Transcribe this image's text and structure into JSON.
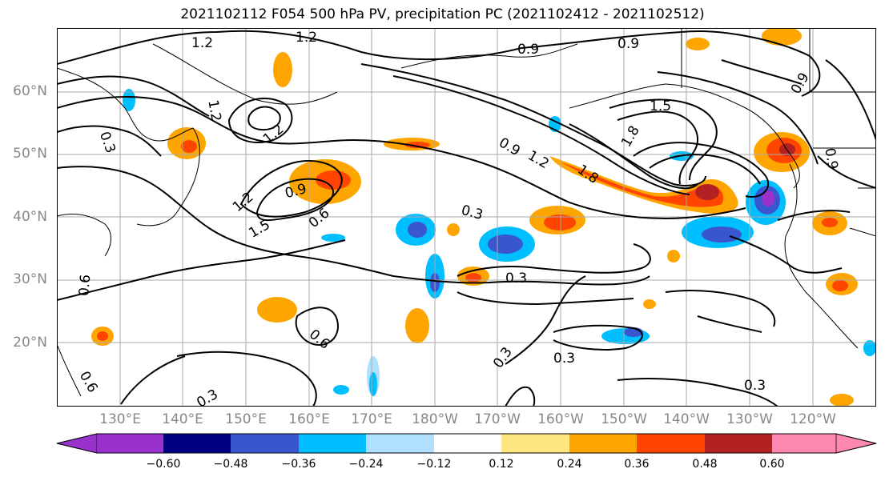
{
  "title": "2021102112 F054 500 hPa PV, precipitation PC (2021102412 - 2021102512)",
  "lat_labels": [
    "60°N",
    "50°N",
    "40°N",
    "30°N",
    "20°N"
  ],
  "lon_labels": [
    "130°E",
    "140°E",
    "150°E",
    "160°E",
    "170°E",
    "180°W",
    "170°W",
    "160°W",
    "150°W",
    "140°W",
    "130°W",
    "120°W"
  ],
  "contour_labels": [
    "1.2",
    "1.2",
    "1.2",
    "1.2",
    "0.3",
    "0.6",
    "0.9",
    "0.9",
    "1.5",
    "1.8",
    "0.9",
    "1.2",
    "1.8",
    "0.9",
    "0.9",
    "1.2",
    "0.9",
    "1.5",
    "0.6",
    "0.3",
    "0.3",
    "0.6",
    "0.6",
    "0.3",
    "0.3",
    "0.3",
    "0.3"
  ],
  "colorbar": {
    "ticks": [
      "−0.60",
      "−0.48",
      "−0.36",
      "−0.24",
      "−0.12",
      "0.12",
      "0.24",
      "0.36",
      "0.48",
      "0.60"
    ],
    "colors": [
      "#9932cc",
      "#000080",
      "#3a56cf",
      "#00bfff",
      "#b0e0ff",
      "#ffffff",
      "#ffe680",
      "#ffa500",
      "#ff4500",
      "#b22222",
      "#ff88b0"
    ]
  }
}
